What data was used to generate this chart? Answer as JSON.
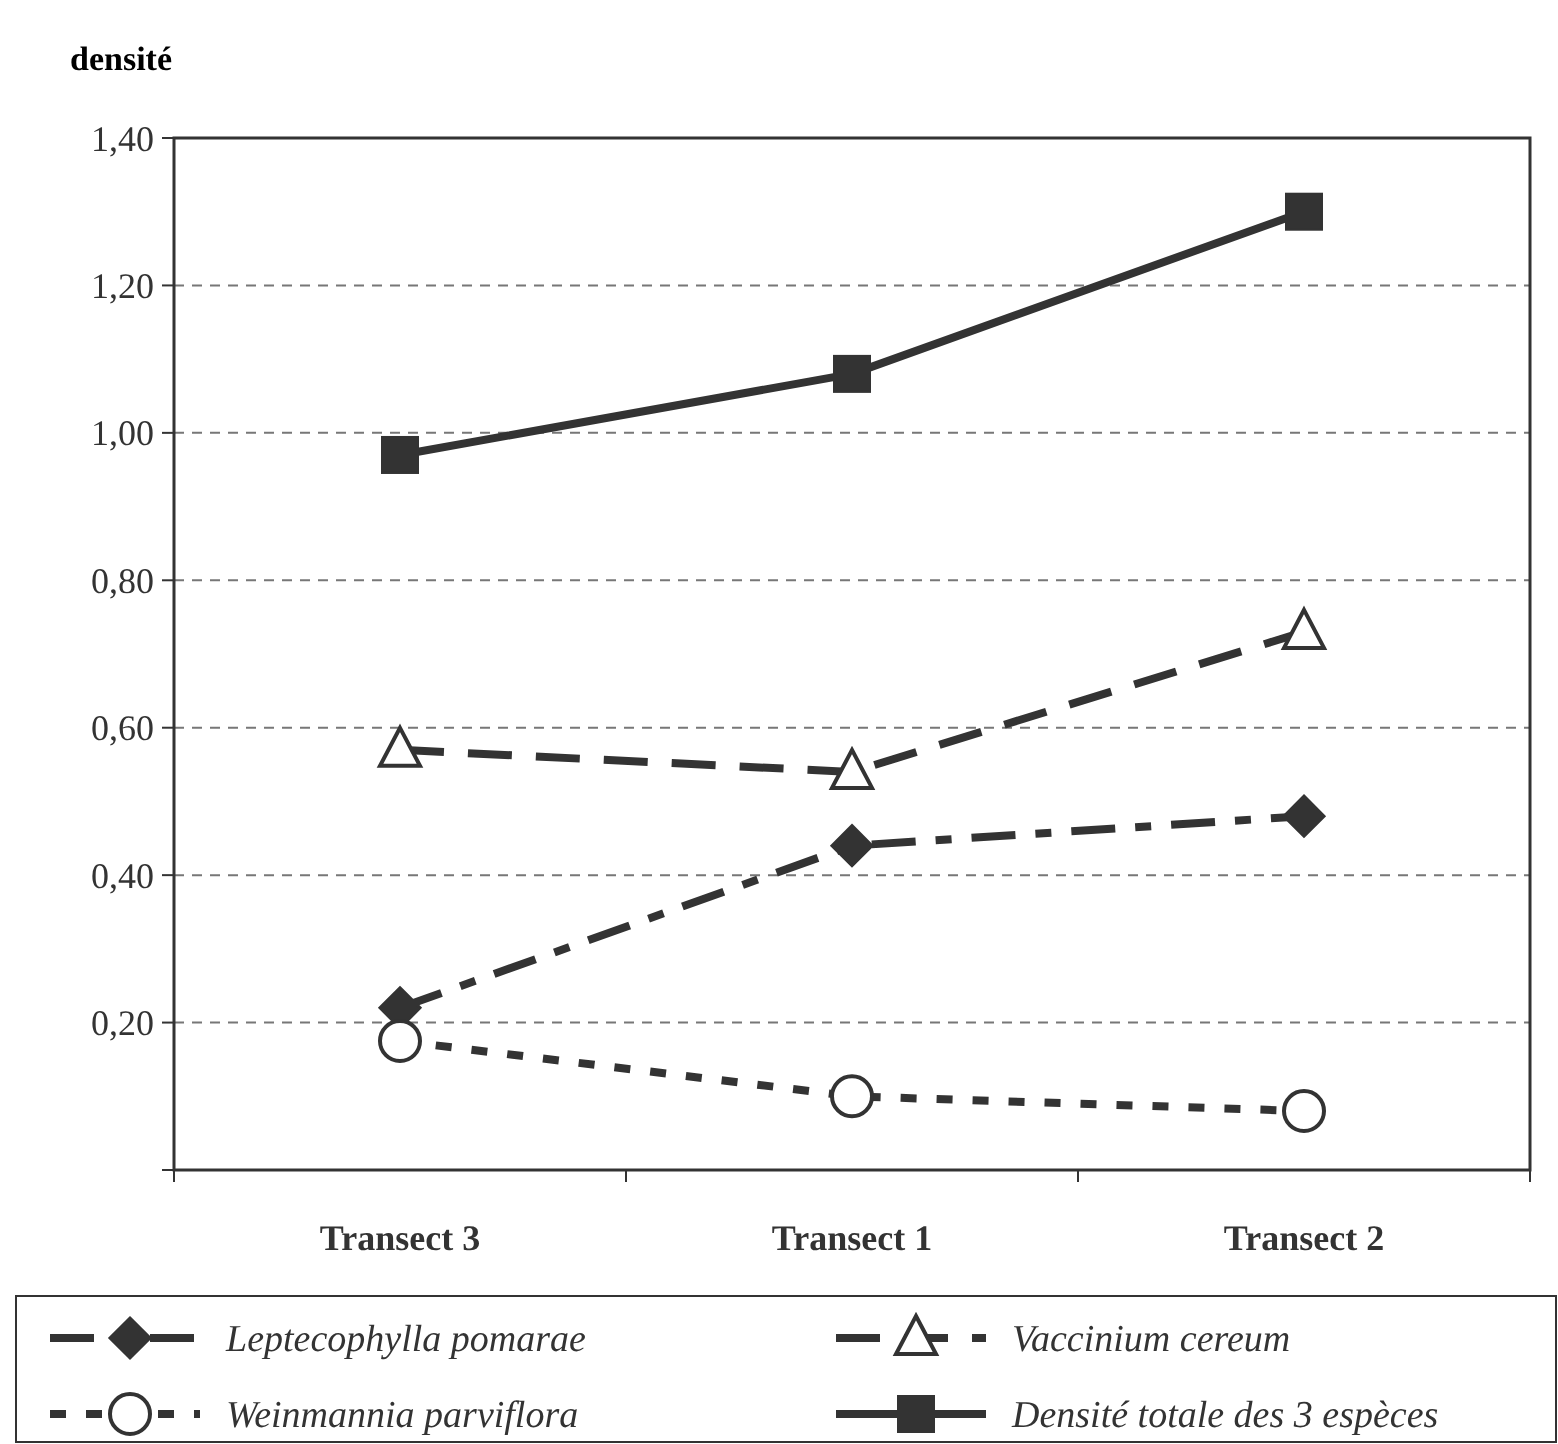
{
  "chart_data": {
    "type": "line",
    "ylabel": "densité",
    "categories": [
      "Transect 3",
      "Transect 1",
      "Transect 2"
    ],
    "ylim": [
      0,
      1.4
    ],
    "yticks": [
      {
        "value": 0,
        "label": null
      },
      {
        "value": 0.2,
        "label": "0,20"
      },
      {
        "value": 0.4,
        "label": "0,40"
      },
      {
        "value": 0.6,
        "label": "0,60"
      },
      {
        "value": 0.8,
        "label": "0,80"
      },
      {
        "value": 1.0,
        "label": "1,00"
      },
      {
        "value": 1.2,
        "label": "1,20"
      },
      {
        "value": 1.4,
        "label": "1,40"
      }
    ],
    "grid": "y",
    "legend": "bottom",
    "series": [
      {
        "name": "Leptecophylla pomarae",
        "color": "#333333",
        "marker": "diamond",
        "line_style": "dashdot",
        "values": [
          0.22,
          0.44,
          0.48
        ]
      },
      {
        "name": "Vaccinium cereum",
        "color": "#333333",
        "marker": "triangle",
        "line_style": "dashed",
        "values": [
          0.57,
          0.54,
          0.73
        ]
      },
      {
        "name": "Weinmannia parviflora",
        "color": "#333333",
        "marker": "circle",
        "line_style": "dotted",
        "values": [
          0.175,
          0.1,
          0.08
        ]
      },
      {
        "name": "Densité totale des 3 espèces",
        "color": "#333333",
        "marker": "square",
        "line_style": "solid",
        "values": [
          0.97,
          1.08,
          1.3
        ]
      }
    ]
  }
}
